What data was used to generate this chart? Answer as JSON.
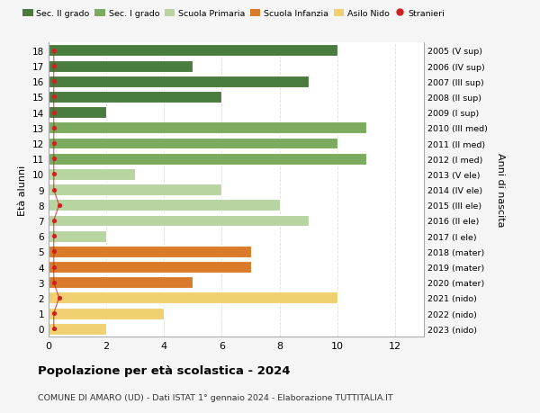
{
  "ages": [
    18,
    17,
    16,
    15,
    14,
    13,
    12,
    11,
    10,
    9,
    8,
    7,
    6,
    5,
    4,
    3,
    2,
    1,
    0
  ],
  "right_labels": [
    "2005 (V sup)",
    "2006 (IV sup)",
    "2007 (III sup)",
    "2008 (II sup)",
    "2009 (I sup)",
    "2010 (III med)",
    "2011 (II med)",
    "2012 (I med)",
    "2013 (V ele)",
    "2014 (IV ele)",
    "2015 (III ele)",
    "2016 (II ele)",
    "2017 (I ele)",
    "2018 (mater)",
    "2019 (mater)",
    "2020 (mater)",
    "2021 (nido)",
    "2022 (nido)",
    "2023 (nido)"
  ],
  "bar_values": [
    10,
    5,
    9,
    6,
    2,
    11,
    10,
    11,
    3,
    6,
    8,
    9,
    2,
    7,
    7,
    5,
    10,
    4,
    2
  ],
  "bar_colors": [
    "#4a7c3f",
    "#4a7c3f",
    "#4a7c3f",
    "#4a7c3f",
    "#4a7c3f",
    "#7aab5e",
    "#7aab5e",
    "#7aab5e",
    "#b8d4a0",
    "#b8d4a0",
    "#b8d4a0",
    "#b8d4a0",
    "#b8d4a0",
    "#d97b2a",
    "#d97b2a",
    "#d97b2a",
    "#f0d070",
    "#f0d070",
    "#f0d070"
  ],
  "stranieri_x": [
    0,
    0,
    0,
    0,
    0,
    0,
    0,
    0,
    0,
    0,
    0,
    0,
    0,
    0,
    0,
    0,
    0,
    0,
    0
  ],
  "stranieri_jitter": [
    1,
    1,
    1,
    1,
    1,
    1,
    1,
    1,
    1,
    1,
    2,
    1,
    1,
    1,
    1,
    1,
    2,
    1,
    1
  ],
  "stranieri_ages": [
    18,
    17,
    16,
    15,
    14,
    13,
    12,
    11,
    10,
    9,
    8,
    7,
    6,
    5,
    4,
    3,
    2,
    1,
    0
  ],
  "legend_labels": [
    "Sec. II grado",
    "Sec. I grado",
    "Scuola Primaria",
    "Scuola Infanzia",
    "Asilo Nido",
    "Stranieri"
  ],
  "legend_colors": [
    "#4a7c3f",
    "#7aab5e",
    "#b8d4a0",
    "#d97b2a",
    "#f0d070",
    "#cc2222"
  ],
  "title": "Popolazione per età scolastica - 2024",
  "subtitle": "COMUNE DI AMARO (UD) - Dati ISTAT 1° gennaio 2024 - Elaborazione TUTTITALIA.IT",
  "ylabel_left": "Età alunni",
  "ylabel_right": "Anni di nascita",
  "xlim": [
    0,
    13
  ],
  "ylim": [
    -0.5,
    18.5
  ],
  "xticks": [
    0,
    2,
    4,
    6,
    8,
    10,
    12
  ],
  "background_color": "#f5f5f5",
  "bar_background": "#ffffff",
  "grid_color": "#dddddd",
  "bar_height": 0.75
}
